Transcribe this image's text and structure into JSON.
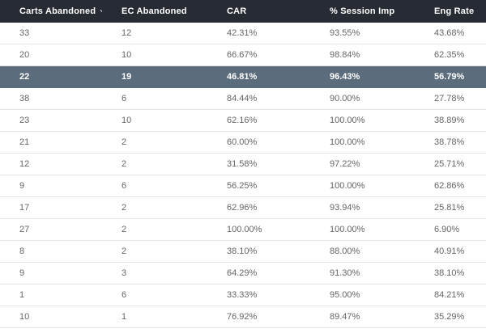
{
  "table": {
    "columns": [
      {
        "label": "Carts Abandoned",
        "sorted": true,
        "sort_icon": "chevron-down"
      },
      {
        "label": "EC Abandoned",
        "sorted": false
      },
      {
        "label": "CAR",
        "sorted": false
      },
      {
        "label": "% Session Imp",
        "sorted": false
      },
      {
        "label": "Eng Rate",
        "sorted": false
      }
    ],
    "rows": [
      [
        "33",
        "12",
        "42.31%",
        "93.55%",
        "43.68%"
      ],
      [
        "20",
        "10",
        "66.67%",
        "98.84%",
        "62.35%"
      ],
      [
        "22",
        "19",
        "46.81%",
        "96.43%",
        "56.79%"
      ],
      [
        "38",
        "6",
        "84.44%",
        "90.00%",
        "27.78%"
      ],
      [
        "23",
        "10",
        "62.16%",
        "100.00%",
        "38.89%"
      ],
      [
        "21",
        "2",
        "60.00%",
        "100.00%",
        "38.78%"
      ],
      [
        "12",
        "2",
        "31.58%",
        "97.22%",
        "25.71%"
      ],
      [
        "9",
        "6",
        "56.25%",
        "100.00%",
        "62.86%"
      ],
      [
        "17",
        "2",
        "62.96%",
        "93.94%",
        "25.81%"
      ],
      [
        "27",
        "2",
        "100.00%",
        "100.00%",
        "6.90%"
      ],
      [
        "8",
        "2",
        "38.10%",
        "88.00%",
        "40.91%"
      ],
      [
        "9",
        "3",
        "64.29%",
        "91.30%",
        "38.10%"
      ],
      [
        "1",
        "6",
        "33.33%",
        "95.00%",
        "84.21%"
      ],
      [
        "10",
        "1",
        "76.92%",
        "89.47%",
        "35.29%"
      ]
    ],
    "highlighted_row_index": 2
  },
  "colors": {
    "header_bg": "#272b33",
    "header_text": "#ffffff",
    "row_text": "#666666",
    "highlight_bg": "#5b6c7c",
    "highlight_text": "#ffffff",
    "divider": "#e3e3e3",
    "page_bg": "#ffffff"
  }
}
